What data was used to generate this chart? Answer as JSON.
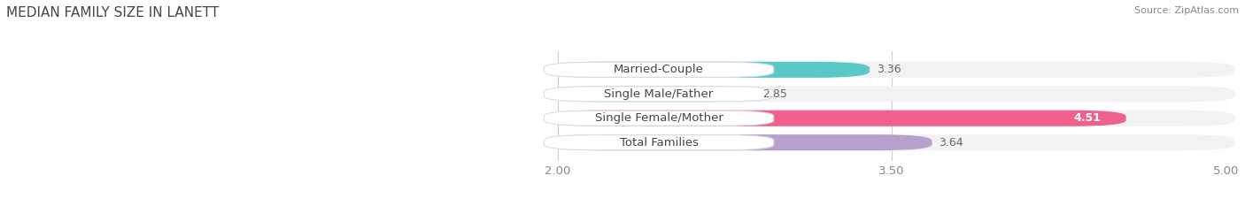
{
  "title": "MEDIAN FAMILY SIZE IN LANETT",
  "source": "Source: ZipAtlas.com",
  "categories": [
    "Married-Couple",
    "Single Male/Father",
    "Single Female/Mother",
    "Total Families"
  ],
  "values": [
    3.36,
    2.85,
    4.51,
    3.64
  ],
  "bar_colors": [
    "#5BC8C8",
    "#AABDE8",
    "#F0608A",
    "#B8A0CC"
  ],
  "xlim": [
    2.0,
    5.0
  ],
  "xticks": [
    2.0,
    3.5,
    5.0
  ],
  "xtick_labels": [
    "2.00",
    "3.50",
    "5.00"
  ],
  "bar_height": 0.58,
  "label_fontsize": 9.5,
  "value_fontsize": 9,
  "title_fontsize": 11,
  "source_fontsize": 8,
  "background_color": "#FFFFFF",
  "pill_bg_color": "#FFFFFF",
  "pill_border_color": "#DDDDDD",
  "outer_bg_color": "#F2F2F2",
  "label_color": "#444444",
  "value_color_outside": "#666666",
  "value_color_inside": "#FFFFFF",
  "grid_color": "#CCCCCC"
}
